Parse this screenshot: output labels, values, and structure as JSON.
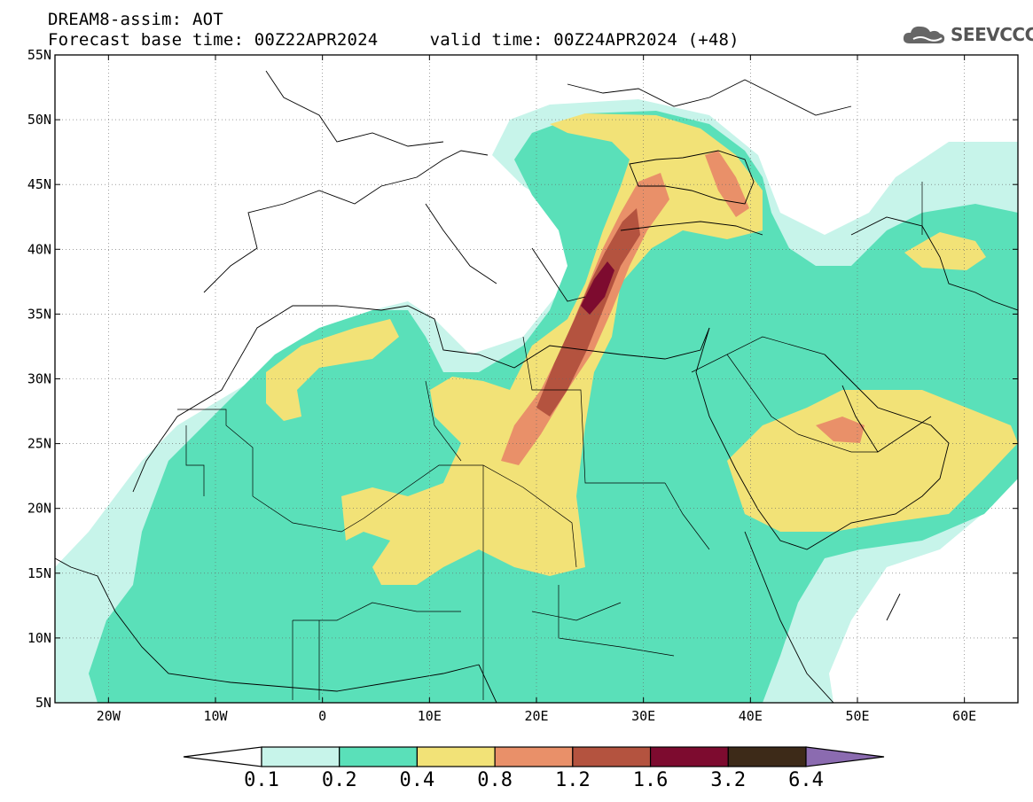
{
  "header": {
    "title_line1": "DREAM8-assim: AOT",
    "title_line2": "Forecast base time: 00Z22APR2024     valid time: 00Z24APR2024 (+48)"
  },
  "logo": {
    "text": "SEEVCCC",
    "icon": "cloud-icon"
  },
  "map": {
    "lon_range": [
      -25,
      65
    ],
    "lat_range": [
      5,
      55
    ],
    "lon_ticks": [
      {
        "value": -20,
        "label": "20W"
      },
      {
        "value": -10,
        "label": "10W"
      },
      {
        "value": 0,
        "label": "0"
      },
      {
        "value": 10,
        "label": "10E"
      },
      {
        "value": 20,
        "label": "20E"
      },
      {
        "value": 30,
        "label": "30E"
      },
      {
        "value": 40,
        "label": "40E"
      },
      {
        "value": 50,
        "label": "50E"
      },
      {
        "value": 60,
        "label": "60E"
      }
    ],
    "lat_ticks": [
      {
        "value": 5,
        "label": "5N"
      },
      {
        "value": 10,
        "label": "10N"
      },
      {
        "value": 15,
        "label": "15N"
      },
      {
        "value": 20,
        "label": "20N"
      },
      {
        "value": 25,
        "label": "25N"
      },
      {
        "value": 30,
        "label": "30N"
      },
      {
        "value": 35,
        "label": "35N"
      },
      {
        "value": 40,
        "label": "40N"
      },
      {
        "value": 45,
        "label": "45N"
      },
      {
        "value": 50,
        "label": "50N"
      },
      {
        "value": 55,
        "label": "55N"
      }
    ],
    "grid": "dotted"
  },
  "colorbar": {
    "labels": [
      "0.1",
      "0.2",
      "0.4",
      "0.8",
      "1.2",
      "1.6",
      "3.2",
      "6.4"
    ],
    "colors": [
      "#ffffff",
      "#c7f4ea",
      "#5ae0b9",
      "#f2e277",
      "#e99069",
      "#b4533f",
      "#7d0b2f",
      "#3d2a18",
      "#8b6bb0"
    ]
  }
}
